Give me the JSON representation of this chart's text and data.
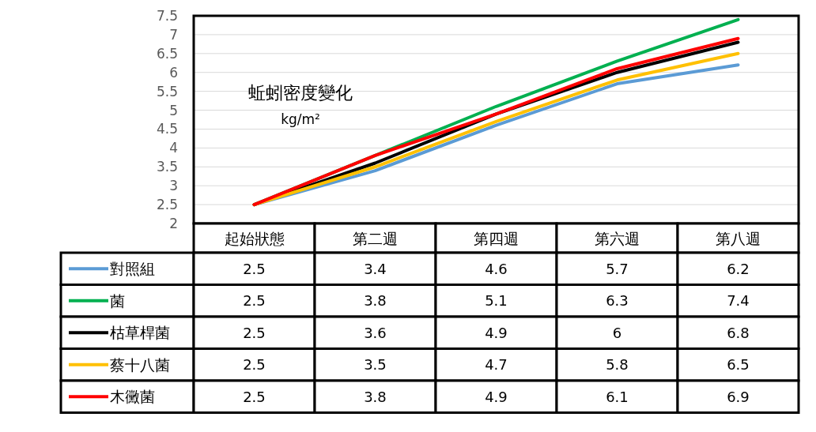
{
  "chart_data": {
    "type": "line",
    "title": "蚯蚓密度變化",
    "subtitle": "kg/m²",
    "categories": [
      "起始狀態",
      "第二週",
      "第四週",
      "第六週",
      "第八週"
    ],
    "series": [
      {
        "name": "對照組",
        "color": "#5b9bd5",
        "values": [
          2.5,
          3.4,
          4.6,
          5.7,
          6.2
        ]
      },
      {
        "name": "菌",
        "color": "#00b050",
        "values": [
          2.5,
          3.8,
          5.1,
          6.3,
          7.4
        ]
      },
      {
        "name": "枯草桿菌",
        "color": "#000000",
        "values": [
          2.5,
          3.6,
          4.9,
          6,
          6.8
        ]
      },
      {
        "name": "蔡十八菌",
        "color": "#ffc000",
        "values": [
          2.5,
          3.5,
          4.7,
          5.8,
          6.5
        ]
      },
      {
        "name": "木黴菌",
        "color": "#ff0000",
        "values": [
          2.5,
          3.8,
          4.9,
          6.1,
          6.9
        ]
      }
    ],
    "ylim": [
      2,
      7.5
    ],
    "yticks": [
      2,
      2.5,
      3,
      3.5,
      4,
      4.5,
      5,
      5.5,
      6,
      6.5,
      7,
      7.5
    ],
    "grid": "y",
    "data_labels": true,
    "legend": "bottom",
    "marker": "none",
    "line_style": "solid"
  }
}
